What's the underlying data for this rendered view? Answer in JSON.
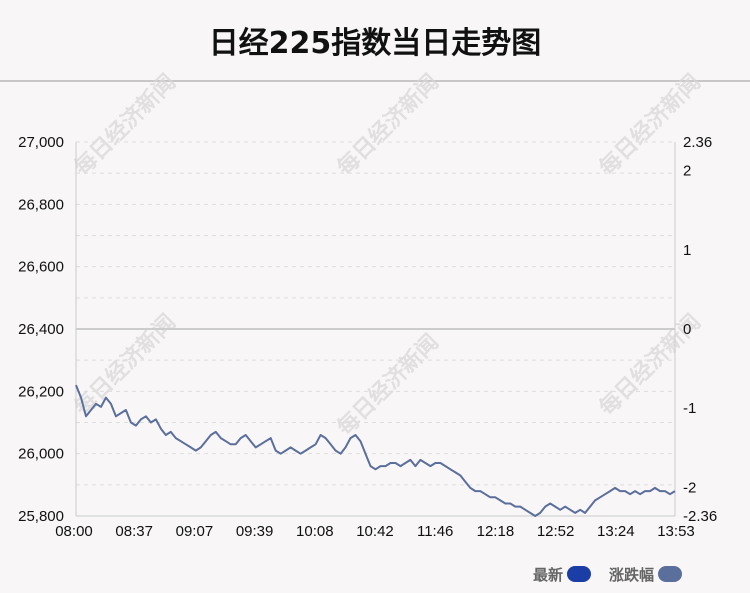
{
  "title": "日经225指数当日走势图",
  "watermark": "每日经济新闻",
  "colors": {
    "line": "#5b6f9c",
    "zero_line": "#cccccc",
    "grid": "#dddddd",
    "legend_latest": "#1a3da6",
    "legend_change": "#5b6f9c"
  },
  "legend": [
    {
      "label": "最新",
      "color": "#1a3da6"
    },
    {
      "label": "涨跌幅",
      "color": "#5b6f9c"
    }
  ],
  "chart_data": {
    "type": "line",
    "title": "日经225指数当日走势图",
    "x_ticks": [
      "08:00",
      "08:37",
      "09:07",
      "09:39",
      "10:08",
      "10:42",
      "11:46",
      "12:18",
      "12:52",
      "13:24",
      "13:53"
    ],
    "y_left_ticks": [
      "27,000",
      "26,800",
      "26,600",
      "26,400",
      "26,200",
      "26,000",
      "25,800"
    ],
    "y_left_ylim": [
      25800,
      27000
    ],
    "y_right_ticks": [
      "2.36",
      "2",
      "1",
      "0",
      "-1",
      "-2",
      "-2.36"
    ],
    "y_right_ylim": [
      -2.36,
      2.36
    ],
    "baseline": 26420,
    "grid": true,
    "series": [
      {
        "name": "最新",
        "values": [
          26220,
          26180,
          26120,
          26140,
          26160,
          26150,
          26180,
          26160,
          26120,
          26130,
          26140,
          26100,
          26090,
          26110,
          26120,
          26100,
          26110,
          26080,
          26060,
          26070,
          26050,
          26040,
          26030,
          26020,
          26010,
          26020,
          26040,
          26060,
          26070,
          26050,
          26040,
          26030,
          26030,
          26050,
          26060,
          26040,
          26020,
          26030,
          26040,
          26050,
          26010,
          26000,
          26010,
          26020,
          26010,
          26000,
          26010,
          26020,
          26030,
          26060,
          26050,
          26030,
          26010,
          26000,
          26020,
          26050,
          26060,
          26040,
          26000,
          25960,
          25950,
          25960,
          25960,
          25970,
          25970,
          25960,
          25970,
          25980,
          25960,
          25980,
          25970,
          25960,
          25970,
          25970,
          25960,
          25950,
          25940,
          25930,
          25910,
          25890,
          25880,
          25880,
          25870,
          25860,
          25860,
          25850,
          25840,
          25840,
          25830,
          25830,
          25820,
          25810,
          25800,
          25810,
          25830,
          25840,
          25830,
          25820,
          25830,
          25820,
          25810,
          25820,
          25810,
          25830,
          25850,
          25860,
          25870,
          25880,
          25890,
          25880,
          25880,
          25870,
          25880,
          25870,
          25880,
          25880,
          25890,
          25880,
          25880,
          25870,
          25880
        ]
      }
    ]
  }
}
